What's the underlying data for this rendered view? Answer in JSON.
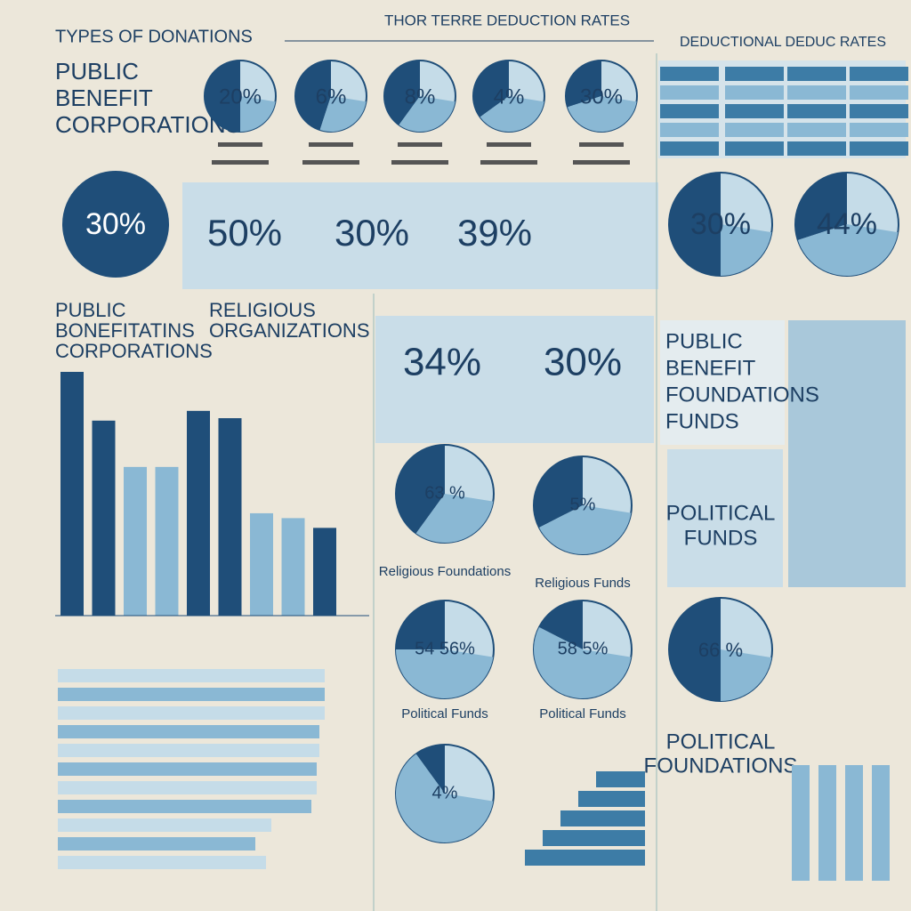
{
  "header": {
    "left": "TYPES OF DONATIONS",
    "center": "THOR TERRE DEDUCTION RATES",
    "right": "DEDUCTIONAL DEDUC RATES"
  },
  "intro_label": [
    "PUBLIC",
    "BENEFIT",
    "CORPORATIONS"
  ],
  "top_circles": [
    "20%",
    "6%",
    "8%",
    "4%",
    "30%"
  ],
  "left_circle": "30%",
  "tiles": [
    "50%",
    "30%",
    "39%"
  ],
  "right_circles": [
    "30%",
    "44%"
  ],
  "section_label": {
    "left": [
      "PUBLIC",
      "BONEFITATINS",
      "CORPORATIONS"
    ],
    "right": [
      "RELIGIOUS",
      "ORGANIZATIONS"
    ]
  },
  "bar_chart": {
    "values": [
      100,
      80,
      61,
      61,
      84,
      81,
      42,
      40,
      36
    ],
    "ylim": [
      0,
      100
    ]
  },
  "mid_tiles": [
    "34%",
    "30%"
  ],
  "side_label": [
    "PUBLIC",
    "BENEFIT",
    "FOUNDATIONS",
    "FUNDS"
  ],
  "pies": [
    {
      "label": "63 %",
      "caption": "Religious Foundations"
    },
    {
      "label": "5%",
      "caption": "Religious Funds"
    },
    {
      "label": "54 56%",
      "caption": "Political Funds"
    },
    {
      "label": "58 5%",
      "caption": "Political Funds"
    },
    {
      "label": "4%"
    }
  ],
  "political_funds": [
    "POLITICAL",
    "FUNDS"
  ],
  "right_pie": "66 %",
  "political_foundations": [
    "POLITICAL",
    "FOUNDATIONS"
  ],
  "hbar_chart": {
    "values": [
      100,
      100,
      100,
      98,
      98,
      97,
      97,
      95,
      80,
      74,
      78
    ],
    "xlim": [
      0,
      100
    ]
  }
}
